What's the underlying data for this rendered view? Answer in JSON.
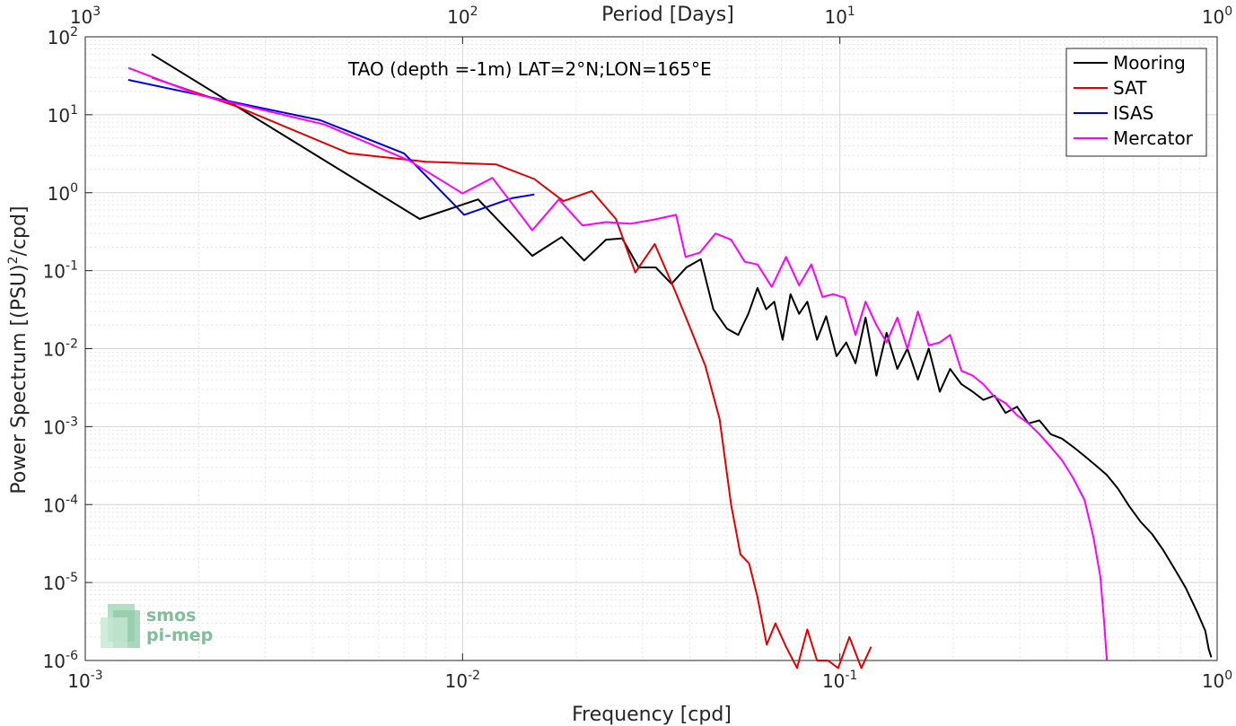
{
  "chart_data": {
    "type": "line",
    "title": "",
    "annotation": "TAO (depth =-1m) LAT=2°N;LON=165°E",
    "xlabel": "Frequency [cpd]",
    "ylabel": "Power Spectrum [(PSU)²/cpd]",
    "ylabel_parts": {
      "before": "Power Spectrum [(PSU)",
      "sup": "2",
      "after": "/cpd]"
    },
    "top_xlabel": "Period [Days]",
    "xscale": "log",
    "yscale": "log",
    "xlim": [
      0.001,
      1
    ],
    "ylim": [
      1e-06,
      100
    ],
    "grid": true,
    "legend_position": "top-right",
    "xticks": [
      {
        "value": 0.001,
        "base": "10",
        "exp": "-3"
      },
      {
        "value": 0.01,
        "base": "10",
        "exp": "-2"
      },
      {
        "value": 0.1,
        "base": "10",
        "exp": "-1"
      },
      {
        "value": 1,
        "base": "10",
        "exp": "0"
      }
    ],
    "yticks": [
      {
        "value": 1e-06,
        "base": "10",
        "exp": "-6"
      },
      {
        "value": 1e-05,
        "base": "10",
        "exp": "-5"
      },
      {
        "value": 0.0001,
        "base": "10",
        "exp": "-4"
      },
      {
        "value": 0.001,
        "base": "10",
        "exp": "-3"
      },
      {
        "value": 0.01,
        "base": "10",
        "exp": "-2"
      },
      {
        "value": 0.1,
        "base": "10",
        "exp": "-1"
      },
      {
        "value": 1,
        "base": "10",
        "exp": "0"
      },
      {
        "value": 10,
        "base": "10",
        "exp": "1"
      },
      {
        "value": 100,
        "base": "10",
        "exp": "2"
      }
    ],
    "top_ticks": [
      {
        "value": 1000,
        "base": "10",
        "exp": "3"
      },
      {
        "value": 100,
        "base": "10",
        "exp": "2"
      },
      {
        "value": 10,
        "base": "10",
        "exp": "1"
      },
      {
        "value": 1,
        "base": "10",
        "exp": "0"
      }
    ],
    "series": [
      {
        "name": "Mooring",
        "color": "#000000",
        "x": [
          0.0015,
          0.0077,
          0.011,
          0.0153,
          0.0183,
          0.021,
          0.024,
          0.0265,
          0.0293,
          0.0325,
          0.0358,
          0.0392,
          0.0428,
          0.0462,
          0.0502,
          0.0538,
          0.0572,
          0.0605,
          0.0638,
          0.067,
          0.0705,
          0.074,
          0.078,
          0.082,
          0.087,
          0.092,
          0.098,
          0.104,
          0.11,
          0.117,
          0.125,
          0.133,
          0.142,
          0.151,
          0.161,
          0.172,
          0.184,
          0.196,
          0.21,
          0.225,
          0.24,
          0.257,
          0.275,
          0.295,
          0.316,
          0.338,
          0.362,
          0.388,
          0.415,
          0.445,
          0.476,
          0.51,
          0.546,
          0.585,
          0.627,
          0.672,
          0.72,
          0.771,
          0.826,
          0.885,
          0.93,
          0.95,
          0.965
        ],
        "y": [
          60,
          0.46,
          0.82,
          0.155,
          0.27,
          0.135,
          0.25,
          0.26,
          0.11,
          0.11,
          0.068,
          0.11,
          0.14,
          0.032,
          0.018,
          0.015,
          0.028,
          0.06,
          0.032,
          0.04,
          0.013,
          0.05,
          0.028,
          0.04,
          0.013,
          0.026,
          0.008,
          0.012,
          0.0065,
          0.025,
          0.0045,
          0.016,
          0.0055,
          0.01,
          0.004,
          0.01,
          0.0028,
          0.0055,
          0.0035,
          0.0028,
          0.0022,
          0.0025,
          0.0015,
          0.0018,
          0.0011,
          0.0012,
          0.0008,
          0.0007,
          0.00055,
          0.00042,
          0.00032,
          0.00024,
          0.00016,
          9.5e-05,
          6e-05,
          4.2e-05,
          2.6e-05,
          1.5e-05,
          8.5e-06,
          4.2e-06,
          2.4e-06,
          1.4e-06,
          1.1e-06
        ]
      },
      {
        "name": "SAT",
        "color": "#e50000",
        "x": [
          0.0015,
          0.0025,
          0.005,
          0.008,
          0.0123,
          0.0155,
          0.0185,
          0.022,
          0.0255,
          0.0287,
          0.0323,
          0.0363,
          0.0402,
          0.044,
          0.048,
          0.0515,
          0.0545,
          0.0575,
          0.0605,
          0.064,
          0.0675,
          0.072,
          0.077,
          0.082,
          0.087,
          0.093,
          0.099,
          0.106,
          0.114,
          0.121
        ],
        "y": [
          30,
          13,
          3.2,
          2.5,
          2.3,
          1.5,
          0.78,
          1.05,
          0.46,
          0.095,
          0.22,
          0.06,
          0.018,
          0.006,
          0.00125,
          0.0001,
          2.3e-05,
          1.75e-05,
          6.5e-06,
          1.6e-06,
          3e-06,
          1.5e-06,
          8e-07,
          2.5e-06,
          1e-06,
          1e-06,
          8e-07,
          2e-06,
          8e-07,
          1.5e-06
        ]
      },
      {
        "name": "ISAS",
        "color": "#0000e5",
        "x": [
          0.0013,
          0.002,
          0.0042,
          0.007,
          0.0101,
          0.0135,
          0.0155
        ],
        "y": [
          28,
          18,
          8.5,
          3.2,
          0.52,
          0.85,
          0.95
        ]
      },
      {
        "name": "Mercator",
        "color": "#ff00ff",
        "x": [
          0.0013,
          0.002,
          0.0043,
          0.0072,
          0.01,
          0.012,
          0.0153,
          0.018,
          0.0208,
          0.024,
          0.0278,
          0.032,
          0.0368,
          0.039,
          0.0425,
          0.0468,
          0.0515,
          0.056,
          0.0605,
          0.066,
          0.072,
          0.078,
          0.084,
          0.09,
          0.096,
          0.103,
          0.11,
          0.117,
          0.125,
          0.133,
          0.142,
          0.151,
          0.161,
          0.172,
          0.184,
          0.196,
          0.21,
          0.225,
          0.24,
          0.257,
          0.275,
          0.295,
          0.316,
          0.338,
          0.362,
          0.388,
          0.415,
          0.445,
          0.47,
          0.49,
          0.502,
          0.51
        ],
        "y": [
          40,
          18,
          7.5,
          2.6,
          0.98,
          1.55,
          0.33,
          0.82,
          0.38,
          0.42,
          0.4,
          0.45,
          0.52,
          0.15,
          0.17,
          0.3,
          0.25,
          0.13,
          0.12,
          0.062,
          0.15,
          0.065,
          0.12,
          0.046,
          0.05,
          0.045,
          0.015,
          0.04,
          0.02,
          0.012,
          0.025,
          0.01,
          0.03,
          0.011,
          0.012,
          0.015,
          0.0052,
          0.0045,
          0.0035,
          0.0024,
          0.002,
          0.0014,
          0.0011,
          0.0008,
          0.00055,
          0.00037,
          0.00022,
          0.000115,
          3.8e-05,
          1.2e-05,
          3e-06,
          1e-06
        ]
      }
    ]
  },
  "logo": {
    "line1": "smos",
    "line2": "pi-mep",
    "color": "#7fbf9a"
  }
}
